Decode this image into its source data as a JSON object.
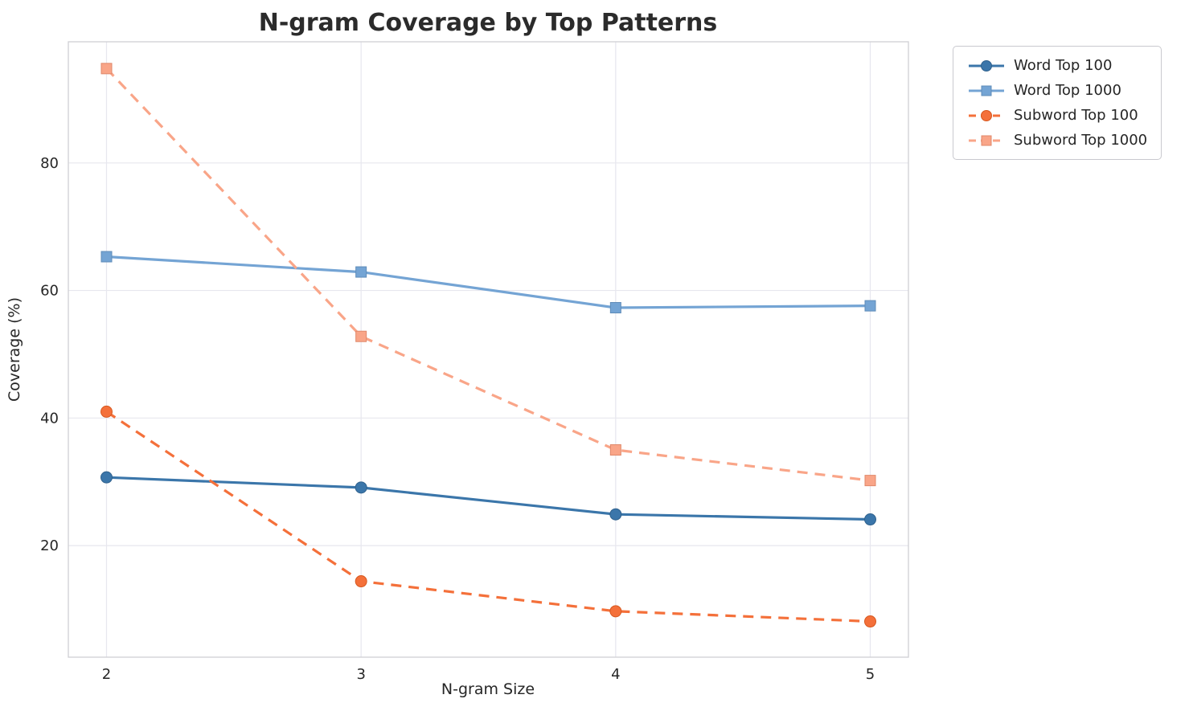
{
  "title": "N-gram Coverage by Top Patterns",
  "chart_data": {
    "type": "line",
    "title": "N-gram Coverage by Top Patterns",
    "x": [
      2,
      3,
      4,
      5
    ],
    "xlabel": "N-gram Size",
    "ylabel": "Coverage (%)",
    "xlim": [
      1.85,
      5.15
    ],
    "ylim": [
      2.5,
      99
    ],
    "xticks": [
      2,
      3,
      4,
      5
    ],
    "yticks": [
      20,
      40,
      60,
      80
    ],
    "grid": true,
    "legend_position": "outside-top-right",
    "colors": {
      "grid": "#e7e7ee",
      "plot_border": "#cfcfd4",
      "text": "#262626"
    },
    "series": [
      {
        "name": "Word Top 100",
        "values": [
          30.7,
          29.1,
          24.9,
          24.1
        ],
        "color": "#3b76aa",
        "edge": "#2f618d",
        "marker": "circle",
        "dash": "solid"
      },
      {
        "name": "Word Top 1000",
        "values": [
          65.3,
          62.9,
          57.3,
          57.6
        ],
        "color": "#74a4d4",
        "edge": "#5f8cb9",
        "marker": "square",
        "dash": "solid"
      },
      {
        "name": "Subword Top 100",
        "values": [
          41.0,
          14.4,
          9.7,
          8.1
        ],
        "color": "#f4703a",
        "edge": "#d6581f",
        "marker": "circle",
        "dash": "dashed"
      },
      {
        "name": "Subword Top 1000",
        "values": [
          94.8,
          52.8,
          35.0,
          30.2
        ],
        "color": "#f9a588",
        "edge": "#e0886a",
        "marker": "square",
        "dash": "dashed"
      }
    ]
  }
}
